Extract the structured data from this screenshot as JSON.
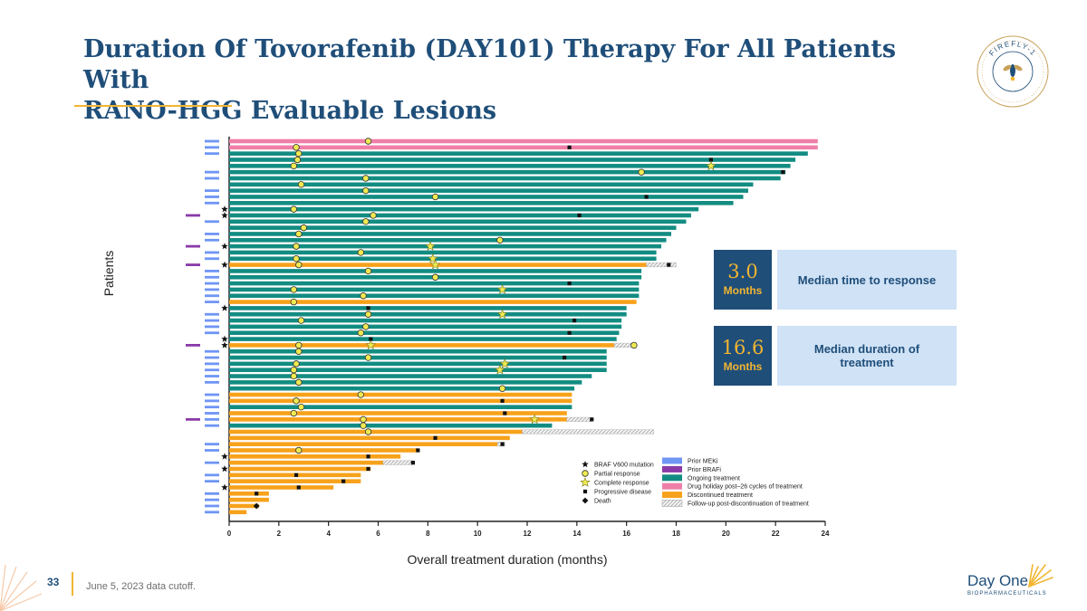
{
  "slide": {
    "title_line1": "Duration Of Tovorafenib (DAY101) Therapy For All Patients With",
    "title_line2": "RANO-HGG Evaluable Lesions",
    "page_number": "33",
    "footnote": "June 5, 2023 data cutoff.",
    "emblem_text": "FIREFLY-1",
    "logo_name": "Day One",
    "logo_sub": "BIOPHARMACEUTICALS"
  },
  "stats": [
    {
      "value": "3.0",
      "unit": "Months",
      "label": "Median time to response"
    },
    {
      "value": "16.6",
      "unit": "Months",
      "label": "Median duration of treatment"
    }
  ],
  "colors": {
    "title": "#1f4e79",
    "accent": "#f2b531",
    "ongoing": "#138c82",
    "discontinued": "#f7a21b",
    "drug_holiday": "#ef7fa9",
    "prior_meki": "#6f95f5",
    "prior_brafi": "#8a3aa8",
    "followup": "#e2e2e2",
    "response_marker": "#f0ea52"
  },
  "chart_data": {
    "type": "swimmer",
    "xlabel": "Overall treatment duration (months)",
    "ylabel": "Patients",
    "xlim": [
      0,
      24
    ],
    "xticks": [
      0,
      2,
      4,
      6,
      8,
      10,
      12,
      14,
      16,
      18,
      20,
      22,
      24
    ],
    "legend": [
      {
        "key": "v600",
        "symbol": "star-black",
        "label": "BRAF V600 mutation"
      },
      {
        "key": "pr",
        "symbol": "circle-yellow",
        "label": "Partial response"
      },
      {
        "key": "cr",
        "symbol": "star-yellow",
        "label": "Complete response"
      },
      {
        "key": "pd",
        "symbol": "square-black",
        "label": "Progressive disease"
      },
      {
        "key": "death",
        "symbol": "diamond-black",
        "label": "Death"
      },
      {
        "key": "meki",
        "symbol": "bar-blue",
        "label": "Prior MEKi"
      },
      {
        "key": "brafi",
        "symbol": "bar-purple",
        "label": "Prior BRAFi"
      },
      {
        "key": "ongoing",
        "symbol": "bar-teal",
        "label": "Ongoing treatment"
      },
      {
        "key": "holiday",
        "symbol": "bar-pink",
        "label": "Drug holiday post–26 cycles of treatment"
      },
      {
        "key": "disc",
        "symbol": "bar-orange",
        "label": "Discontinued treatment"
      },
      {
        "key": "fu",
        "symbol": "bar-hatched",
        "label": "Follow-up post-discontinuation of treatment"
      }
    ],
    "patients": [
      {
        "status": "holiday",
        "dur": 23.7,
        "meki": true,
        "pr": 5.6
      },
      {
        "status": "holiday",
        "dur": 23.7,
        "meki": true,
        "pr": 2.7,
        "pd": 13.7
      },
      {
        "status": "ongoing",
        "dur": 23.3,
        "meki": true,
        "pr": 2.8
      },
      {
        "status": "ongoing",
        "dur": 22.8,
        "pr": 2.75,
        "pd": 19.4
      },
      {
        "status": "ongoing",
        "dur": 22.6,
        "pr": 2.6,
        "cr": 19.4
      },
      {
        "status": "ongoing",
        "dur": 22.4,
        "meki": true,
        "pr": 16.6,
        "pd": 22.3
      },
      {
        "status": "ongoing",
        "dur": 22.2,
        "meki": true,
        "pr": 5.5
      },
      {
        "status": "ongoing",
        "dur": 21.1,
        "pr": 2.9
      },
      {
        "status": "ongoing",
        "dur": 20.9,
        "meki": true,
        "pr": 5.5
      },
      {
        "status": "ongoing",
        "dur": 20.7,
        "meki": true,
        "pr": 8.3,
        "pd": 16.8
      },
      {
        "status": "ongoing",
        "dur": 20.3,
        "meki": true
      },
      {
        "status": "ongoing",
        "dur": 18.9,
        "v600": true,
        "pr": 2.6
      },
      {
        "status": "ongoing",
        "dur": 18.6,
        "v600": true,
        "brafi": true,
        "pr": 5.8,
        "pd": 14.1
      },
      {
        "status": "ongoing",
        "dur": 18.4,
        "meki": true,
        "pr": 5.5
      },
      {
        "status": "ongoing",
        "dur": 18.0,
        "pr": 3.0
      },
      {
        "status": "ongoing",
        "dur": 17.8,
        "meki": true,
        "pr": 2.8
      },
      {
        "status": "ongoing",
        "dur": 17.6,
        "meki": true,
        "pr": 10.9
      },
      {
        "status": "ongoing",
        "dur": 17.4,
        "v600": true,
        "brafi": true,
        "pr": 2.7,
        "cr": 8.1
      },
      {
        "status": "ongoing",
        "dur": 17.2,
        "meki": true,
        "pr": 5.3
      },
      {
        "status": "ongoing",
        "dur": 17.2,
        "meki": true,
        "pr": 2.7,
        "cr": 8.2
      },
      {
        "status": "disc",
        "dur": 16.8,
        "fu": 18.0,
        "v600": true,
        "brafi": true,
        "pr": 2.8,
        "cr": 8.3,
        "pd": 17.7
      },
      {
        "status": "ongoing",
        "dur": 16.6,
        "meki": true,
        "pr": 5.6
      },
      {
        "status": "ongoing",
        "dur": 16.6,
        "meki": true,
        "pr": 8.3
      },
      {
        "status": "ongoing",
        "dur": 16.5,
        "meki": true,
        "pd": 13.7
      },
      {
        "status": "ongoing",
        "dur": 16.5,
        "meki": true,
        "pr": 2.6,
        "cr": 11.0
      },
      {
        "status": "ongoing",
        "dur": 16.5,
        "meki": true,
        "pr": 5.4
      },
      {
        "status": "disc",
        "dur": 16.4,
        "meki": true,
        "pr": 2.6
      },
      {
        "status": "ongoing",
        "dur": 16.0,
        "v600": true,
        "pd": 5.6
      },
      {
        "status": "ongoing",
        "dur": 16.0,
        "meki": true,
        "pr": 5.6,
        "cr": 11.0
      },
      {
        "status": "ongoing",
        "dur": 15.8,
        "meki": true,
        "pr": 2.9,
        "pd": 13.9
      },
      {
        "status": "ongoing",
        "dur": 15.8,
        "meki": true,
        "pr": 5.5
      },
      {
        "status": "ongoing",
        "dur": 15.7,
        "meki": true,
        "pr": 5.3,
        "pd": 13.7
      },
      {
        "status": "ongoing",
        "dur": 15.6,
        "v600": true,
        "pd": 5.7
      },
      {
        "status": "disc",
        "dur": 15.5,
        "fu": 16.3,
        "v600": true,
        "brafi": true,
        "pr": 2.8,
        "cr": 5.7,
        "pr2": 16.3
      },
      {
        "status": "ongoing",
        "dur": 15.2,
        "meki": true,
        "pr": 2.8
      },
      {
        "status": "ongoing",
        "dur": 15.2,
        "meki": true,
        "pr": 5.6,
        "pd": 13.5
      },
      {
        "status": "ongoing",
        "dur": 15.2,
        "meki": true,
        "pr": 2.7,
        "cr": 11.1
      },
      {
        "status": "ongoing",
        "dur": 15.2,
        "meki": true,
        "pr": 2.6,
        "cr": 10.9
      },
      {
        "status": "ongoing",
        "dur": 14.6,
        "meki": true,
        "pr": 2.6
      },
      {
        "status": "ongoing",
        "dur": 14.2,
        "meki": true,
        "pr": 2.8
      },
      {
        "status": "ongoing",
        "dur": 13.9,
        "pr": 11.0
      },
      {
        "status": "disc",
        "dur": 13.8,
        "meki": true,
        "pr": 5.3
      },
      {
        "status": "disc",
        "dur": 13.8,
        "meki": true,
        "pr": 2.7,
        "pd": 11.0
      },
      {
        "status": "ongoing",
        "dur": 13.8,
        "meki": true,
        "pr": 2.9
      },
      {
        "status": "disc",
        "dur": 13.6,
        "meki": true,
        "pr": 2.6,
        "pd": 11.1
      },
      {
        "status": "disc",
        "dur": 13.6,
        "fu": 14.6,
        "brafi": true,
        "meki": true,
        "pr": 5.4,
        "cr": 12.3,
        "pd": 14.6
      },
      {
        "status": "ongoing",
        "dur": 13.0,
        "meki": true,
        "pr": 5.4
      },
      {
        "status": "disc",
        "dur": 11.8,
        "fu": 17.1,
        "pr": 5.6
      },
      {
        "status": "disc",
        "dur": 11.3,
        "pd": 8.3
      },
      {
        "status": "disc",
        "dur": 10.8,
        "fu": 11.1,
        "meki": true,
        "pd": 11.0
      },
      {
        "status": "disc",
        "dur": 7.6,
        "meki": true,
        "pr": 2.8,
        "pd": 7.6
      },
      {
        "status": "disc",
        "dur": 6.9,
        "v600": true,
        "pd": 5.6
      },
      {
        "status": "disc",
        "dur": 6.2,
        "fu": 7.4,
        "meki": true,
        "pd": 7.4
      },
      {
        "status": "disc",
        "dur": 5.7,
        "v600": true,
        "pd": 5.6
      },
      {
        "status": "disc",
        "dur": 5.3,
        "meki": true,
        "pd": 2.7
      },
      {
        "status": "disc",
        "dur": 5.3,
        "meki": true,
        "pd": 4.6
      },
      {
        "status": "disc",
        "dur": 4.2,
        "v600": true,
        "pd": 2.8
      },
      {
        "status": "disc",
        "dur": 1.6,
        "meki": true,
        "pd": 1.1
      },
      {
        "status": "disc",
        "dur": 1.6,
        "meki": true
      },
      {
        "status": "disc",
        "dur": 1.2,
        "meki": true,
        "death": 1.1
      },
      {
        "status": "disc",
        "dur": 0.7,
        "meki": true
      }
    ]
  }
}
